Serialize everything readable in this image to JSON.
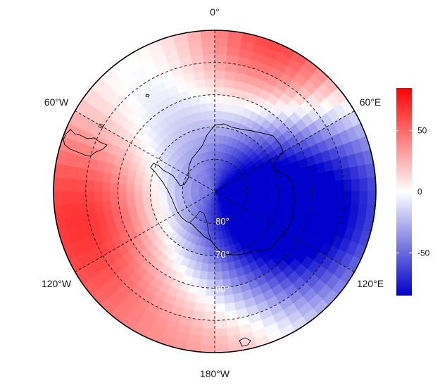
{
  "map": {
    "projection": "south-polar-stereographic",
    "longitude_labels": [
      {
        "key": "lon-0",
        "text": "0°"
      },
      {
        "key": "lon-60e",
        "text": "60°E"
      },
      {
        "key": "lon-120e",
        "text": "120°E"
      },
      {
        "key": "lon-180",
        "text": "180°W"
      },
      {
        "key": "lon-120w",
        "text": "120°W"
      },
      {
        "key": "lon-60w",
        "text": "60°W"
      }
    ],
    "latitude_labels": [
      "80°",
      "70°",
      "60°",
      "50°"
    ],
    "graticule": {
      "meridians_every_deg": 60,
      "parallels_every_deg": 10,
      "style": "dashed"
    },
    "colors": {
      "positive": "#ff0000",
      "neutral": "#ffffff",
      "negative": "#0000cc",
      "coastline": "#000000"
    },
    "anomaly_centers": [
      {
        "name": "positive-lobe-0E",
        "lon": 25,
        "lat": -44,
        "value": 82
      },
      {
        "name": "positive-lobe-180",
        "lon": 180,
        "lat": -48,
        "value": 60
      },
      {
        "name": "positive-lobe-120W",
        "lon": -115,
        "lat": -52,
        "value": 45
      },
      {
        "name": "positive-lobe-90W",
        "lon": -85,
        "lat": -46,
        "value": 38
      },
      {
        "name": "negative-lobe-90E",
        "lon": 88,
        "lat": -57,
        "value": -82
      },
      {
        "name": "negative-lobe-150E",
        "lon": 152,
        "lat": -72,
        "value": -55
      },
      {
        "name": "negative-lobe-30W",
        "lon": -28,
        "lat": -63,
        "value": -35
      },
      {
        "name": "negative-lobe-180",
        "lon": -178,
        "lat": -63,
        "value": -30
      },
      {
        "name": "weak-ring-pole",
        "lon": 45,
        "lat": -82,
        "value": -18
      }
    ]
  },
  "colorbar": {
    "min": -85,
    "max": 85,
    "ticks": [
      "50",
      "0",
      "-50"
    ],
    "tick_values": [
      50,
      0,
      -50
    ]
  }
}
